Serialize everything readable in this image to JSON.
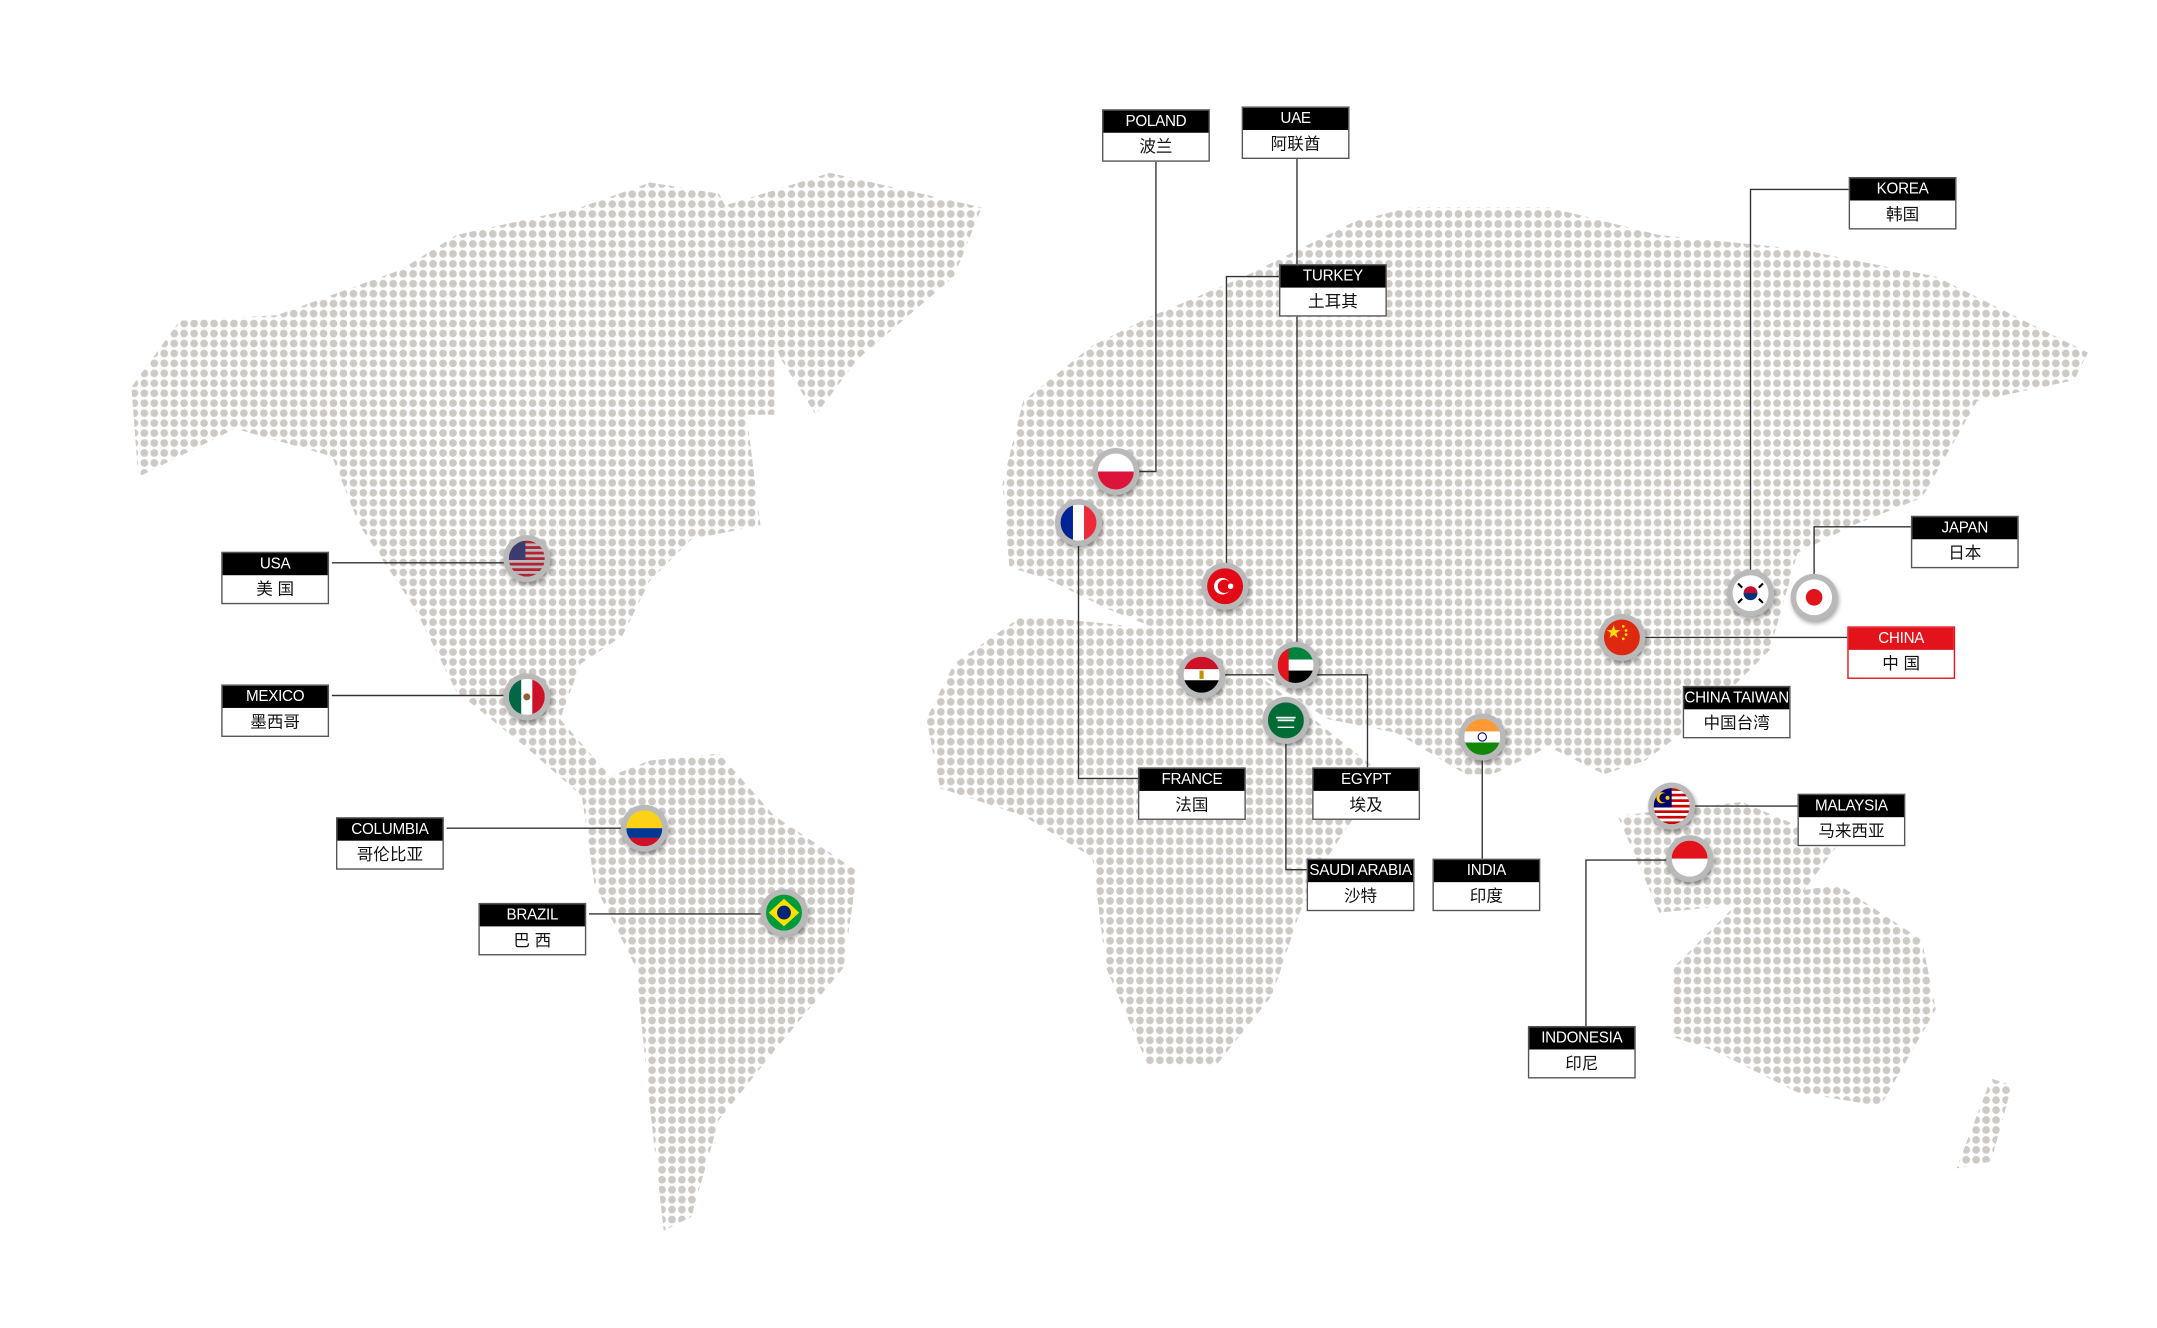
{
  "colors": {
    "dots": "#cdc9c5",
    "label_header": "#000000",
    "highlight": "#e3131b",
    "line": "#333333"
  },
  "countries": [
    {
      "id": "poland",
      "en": "POLAND",
      "cn": "波兰",
      "flag": "poland-flag-icon"
    },
    {
      "id": "uae",
      "en": "UAE",
      "cn": "阿联酋",
      "flag": "uae-flag-icon"
    },
    {
      "id": "turkey",
      "en": "TURKEY",
      "cn": "土耳其",
      "flag": "turkey-flag-icon"
    },
    {
      "id": "korea",
      "en": "KOREA",
      "cn": "韩国",
      "flag": "korea-flag-icon"
    },
    {
      "id": "japan",
      "en": "JAPAN",
      "cn": "日本",
      "flag": "japan-flag-icon"
    },
    {
      "id": "china",
      "en": "CHINA",
      "cn": "中 国",
      "flag": "china-flag-icon",
      "highlight": true
    },
    {
      "id": "china-taiwan",
      "en": "CHINA TAIWAN",
      "cn": "中国台湾"
    },
    {
      "id": "malaysia",
      "en": "MALAYSIA",
      "cn": "马来西亚",
      "flag": "malaysia-flag-icon"
    },
    {
      "id": "indonesia",
      "en": "INDONESIA",
      "cn": "印尼",
      "flag": "indonesia-flag-icon"
    },
    {
      "id": "india",
      "en": "INDIA",
      "cn": "印度",
      "flag": "india-flag-icon"
    },
    {
      "id": "saudi-arabia",
      "en": "SAUDI ARABIA",
      "cn": "沙特",
      "flag": "saudi-arabia-flag-icon"
    },
    {
      "id": "egypt",
      "en": "EGYPT",
      "cn": "埃及",
      "flag": "egypt-flag-icon"
    },
    {
      "id": "france",
      "en": "FRANCE",
      "cn": "法国",
      "flag": "france-flag-icon"
    },
    {
      "id": "usa",
      "en": "USA",
      "cn": "美 国",
      "flag": "usa-flag-icon"
    },
    {
      "id": "mexico",
      "en": "MEXICO",
      "cn": "墨西哥",
      "flag": "mexico-flag-icon"
    },
    {
      "id": "columbia",
      "en": "COLUMBIA",
      "cn": "哥伦比亚",
      "flag": "colombia-flag-icon"
    },
    {
      "id": "brazil",
      "en": "BRAZIL",
      "cn": "巴 西",
      "flag": "brazil-flag-icon"
    }
  ]
}
